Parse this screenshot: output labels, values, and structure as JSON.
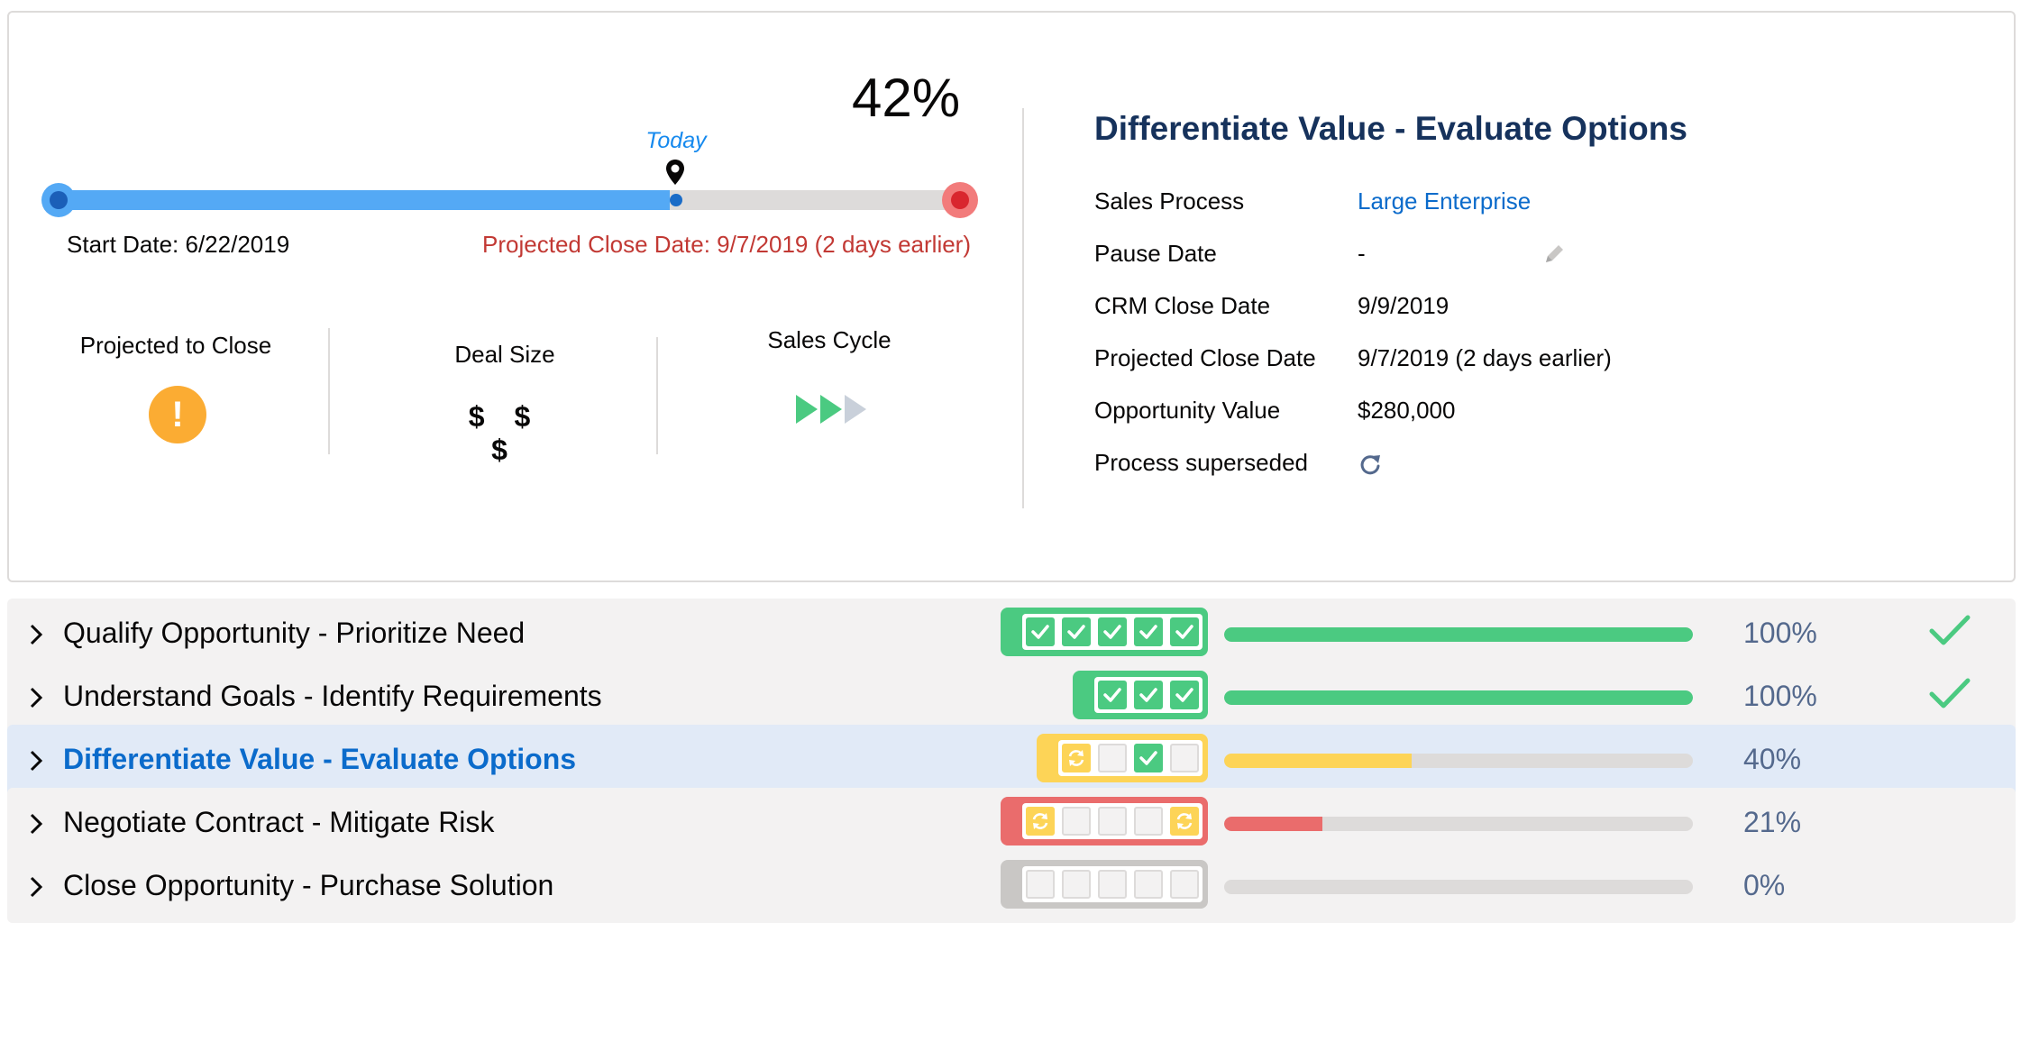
{
  "summary": {
    "percent": "42%",
    "today_label": "Today",
    "start_date": "Start Date: 6/22/2019",
    "projected_close": "Projected Close Date: 9/7/2019 (2 days earlier)",
    "progress_fraction": 0.68,
    "stats": {
      "projected_to_close": "Projected to Close",
      "deal_size": "Deal Size",
      "deal_size_value": "$ $ $",
      "sales_cycle": "Sales Cycle"
    }
  },
  "detail": {
    "title": "Differentiate Value - Evaluate Options",
    "rows": [
      {
        "label": "Sales Process",
        "value": "Large Enterprise"
      },
      {
        "label": "Pause Date",
        "value": "-"
      },
      {
        "label": "CRM Close Date",
        "value": "9/9/2019"
      },
      {
        "label": "Projected Close Date",
        "value": "9/7/2019 (2 days earlier)"
      },
      {
        "label": "Opportunity Value",
        "value": "$280,000"
      },
      {
        "label": "Process superseded",
        "value": ""
      }
    ]
  },
  "stages": [
    {
      "name": "Qualify Opportunity - Prioritize Need",
      "percent": "100%",
      "fill": 1.0,
      "status_color": "#4bca81",
      "boxes": [
        "done",
        "done",
        "done",
        "done",
        "done"
      ],
      "complete": true
    },
    {
      "name": "Understand Goals - Identify Requirements",
      "percent": "100%",
      "fill": 1.0,
      "status_color": "#4bca81",
      "boxes": [
        "done",
        "done",
        "done"
      ],
      "complete": true
    },
    {
      "name": "Differentiate Value - Evaluate Options",
      "percent": "40%",
      "fill": 0.4,
      "status_color": "#fdd457",
      "boxes": [
        "prog",
        "empty",
        "done",
        "empty"
      ],
      "complete": false
    },
    {
      "name": "Negotiate Contract - Mitigate Risk",
      "percent": "21%",
      "fill": 0.21,
      "status_color": "#ea6c6c",
      "boxes": [
        "prog",
        "empty",
        "empty",
        "empty",
        "prog"
      ],
      "complete": false
    },
    {
      "name": "Close Opportunity - Purchase Solution",
      "percent": "0%",
      "fill": 0.0,
      "status_color": "#c9c7c5",
      "boxes": [
        "empty",
        "empty",
        "empty",
        "empty",
        "empty"
      ],
      "complete": false
    }
  ],
  "colors": {
    "accent_blue": "#54a9f5",
    "success_green": "#4bca81",
    "warning_yellow": "#fdd457",
    "error_red": "#ea6c6c",
    "text_blue": "#0b6bcb"
  },
  "icons": {
    "pin": "location-pin-icon",
    "warning": "warning-icon",
    "sales_cycle": "fast-forward-icon",
    "edit": "pencil-icon",
    "refresh": "refresh-icon",
    "chevron": "chevron-right-icon",
    "check": "checkmark-icon"
  }
}
